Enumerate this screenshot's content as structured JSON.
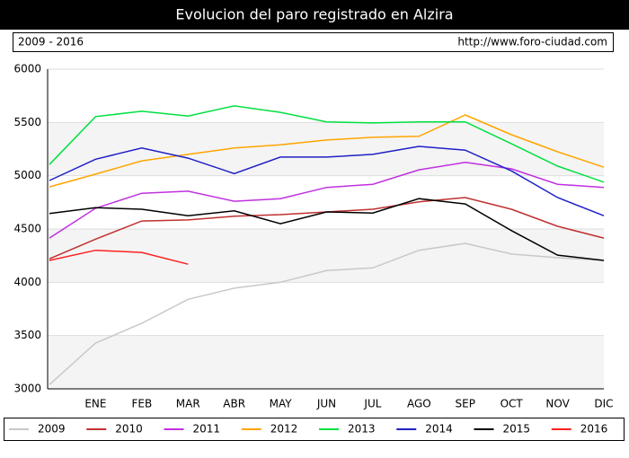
{
  "chart_data": {
    "type": "line",
    "title": "Evolucion del paro registrado en Alzira",
    "subtitle": "2009 - 2016",
    "source": "http://www.foro-ciudad.com",
    "categories": [
      null,
      "ENE",
      "FEB",
      "MAR",
      "ABR",
      "MAY",
      "JUN",
      "JUL",
      "AGO",
      "SEP",
      "OCT",
      "NOV",
      "DIC"
    ],
    "ylim": [
      3000,
      6000
    ],
    "yticks": [
      3000,
      3500,
      4000,
      4500,
      5000,
      5500,
      6000
    ],
    "grid": true,
    "legend": "bottom",
    "series": [
      {
        "name": "2009",
        "color": "#c8c8c8",
        "values": [
          3040,
          3430,
          3615,
          3840,
          3945,
          4000,
          4110,
          4135,
          4300,
          4365,
          4265,
          4230,
          4205
        ]
      },
      {
        "name": "2010",
        "color": "#c03030",
        "values": [
          4220,
          4405,
          4575,
          4585,
          4620,
          4635,
          4660,
          4685,
          4755,
          4795,
          4685,
          4525,
          4415
        ]
      },
      {
        "name": "2011",
        "color": "#c030e0",
        "values": [
          4415,
          4695,
          4835,
          4855,
          4760,
          4785,
          4890,
          4920,
          5055,
          5125,
          5065,
          4920,
          4890
        ]
      },
      {
        "name": "2012",
        "color": "#ffa500",
        "values": [
          4895,
          5015,
          5140,
          5200,
          5260,
          5290,
          5335,
          5360,
          5370,
          5570,
          5385,
          5225,
          5080
        ]
      },
      {
        "name": "2013",
        "color": "#00e040",
        "values": [
          5105,
          5555,
          5605,
          5560,
          5655,
          5595,
          5505,
          5495,
          5505,
          5505,
          5300,
          5090,
          4940
        ]
      },
      {
        "name": "2014",
        "color": "#2020c8",
        "values": [
          4955,
          5155,
          5260,
          5165,
          5020,
          5175,
          5175,
          5200,
          5275,
          5240,
          5045,
          4795,
          4625
        ]
      },
      {
        "name": "2015",
        "color": "#000000",
        "values": [
          4645,
          4700,
          4685,
          4625,
          4670,
          4550,
          4660,
          4650,
          4785,
          4735,
          4485,
          4255,
          4205
        ]
      },
      {
        "name": "2016",
        "color": "#ff2020",
        "values": [
          4205,
          4300,
          4280,
          4170,
          null,
          null,
          null,
          null,
          null,
          null,
          null,
          null,
          null
        ]
      }
    ]
  }
}
